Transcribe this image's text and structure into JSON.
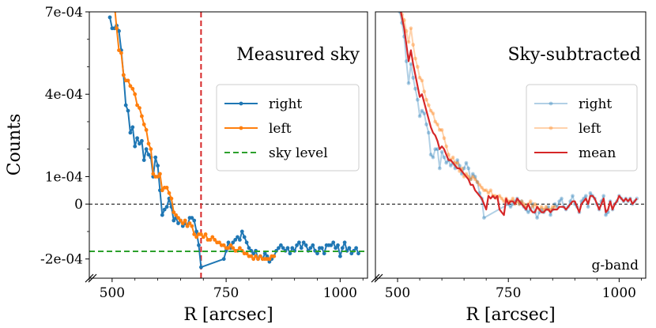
{
  "chart_data": [
    {
      "type": "line",
      "title": "Measured sky",
      "xlabel": "R [arcsec]",
      "ylabel": "Counts",
      "xlim": [
        450,
        1060
      ],
      "ylim": [
        -0.00027,
        0.0007
      ],
      "xticks": [
        500,
        750,
        1000
      ],
      "xtick_labels": [
        "500",
        "750",
        "1000"
      ],
      "yticks": [
        0.0007,
        0.0004,
        0.0001,
        0,
        -0.0002
      ],
      "ytick_labels": [
        "7e-04",
        "4e-04",
        "1e-04",
        "0",
        "-2e-04"
      ],
      "legend_position": "center-right",
      "vline": {
        "x": 695,
        "color": "#d62728"
      },
      "hline_zero": {
        "y": 0,
        "color": "#000000"
      },
      "series": [
        {
          "name": "right",
          "color": "#1f77b4",
          "marker": true,
          "x": [
            495,
            500,
            505,
            510,
            515,
            520,
            525,
            530,
            535,
            540,
            545,
            550,
            555,
            560,
            565,
            570,
            575,
            580,
            585,
            590,
            595,
            600,
            605,
            610,
            615,
            620,
            625,
            630,
            635,
            640,
            645,
            650,
            655,
            660,
            665,
            670,
            675,
            680,
            685,
            690,
            695,
            745,
            750,
            755,
            760,
            765,
            770,
            775,
            780,
            785,
            790,
            795,
            800,
            805,
            810,
            815,
            820,
            825,
            830,
            835,
            840,
            845,
            850,
            855,
            860,
            865,
            870,
            875,
            880,
            885,
            890,
            895,
            900,
            905,
            910,
            915,
            920,
            925,
            930,
            935,
            940,
            945,
            950,
            955,
            960,
            965,
            970,
            975,
            980,
            985,
            990,
            995,
            1000,
            1005,
            1010,
            1015,
            1020,
            1025,
            1030,
            1035,
            1040
          ],
          "y": [
            0.00068,
            0.00064,
            0.00064,
            0.00065,
            0.00063,
            0.00056,
            0.00047,
            0.00036,
            0.00034,
            0.00026,
            0.00028,
            0.00021,
            0.00024,
            0.00022,
            0.00023,
            0.00016,
            0.0002,
            0.00018,
            0.00017,
            0.0001,
            0.00017,
            0.00014,
            5e-05,
            -4e-05,
            -2e-05,
            -1e-05,
            2e-05,
            -1e-05,
            -6e-05,
            -5e-05,
            -7e-05,
            -6e-05,
            -8e-05,
            -7e-05,
            -8e-05,
            -5e-05,
            -5e-05,
            -6e-05,
            -0.0001,
            -0.00015,
            -0.00023,
            -0.0002,
            -0.00017,
            -0.00014,
            -0.00016,
            -0.00014,
            -0.00013,
            -0.00012,
            -0.00013,
            -0.0001,
            -0.00012,
            -0.00014,
            -0.00016,
            -0.00017,
            -0.00018,
            -0.00017,
            -0.0002,
            -0.00019,
            -0.0002,
            -0.00018,
            -0.00019,
            -0.00021,
            -0.0002,
            -0.00019,
            -0.00017,
            -0.00016,
            -0.00015,
            -0.00016,
            -0.00017,
            -0.00016,
            -0.00018,
            -0.00016,
            -0.00017,
            -0.00015,
            -0.00014,
            -0.00016,
            -0.00014,
            -0.00015,
            -0.00017,
            -0.00016,
            -0.00015,
            -0.00017,
            -0.00018,
            -0.00016,
            -0.00016,
            -0.00018,
            -0.00015,
            -0.00015,
            -0.00015,
            -0.00014,
            -0.00016,
            -0.00015,
            -0.00019,
            -0.00016,
            -0.00014,
            -0.00017,
            -0.00016,
            -0.00018,
            -0.00017,
            -0.00016,
            -0.00018
          ]
        },
        {
          "name": "left",
          "color": "#ff7f0e",
          "marker": true,
          "x": [
            505,
            510,
            515,
            520,
            525,
            530,
            535,
            540,
            545,
            550,
            555,
            560,
            565,
            570,
            575,
            580,
            585,
            590,
            595,
            600,
            605,
            610,
            615,
            620,
            625,
            630,
            635,
            640,
            645,
            650,
            655,
            660,
            665,
            670,
            675,
            680,
            685,
            690,
            695,
            700,
            705,
            710,
            715,
            720,
            725,
            730,
            735,
            740,
            745,
            750,
            755,
            760,
            765,
            770,
            775,
            780,
            785,
            790,
            795,
            800,
            805,
            810,
            815,
            820,
            825,
            830,
            835,
            840,
            845,
            850,
            855
          ],
          "y": [
            0.00073,
            0.00064,
            0.00056,
            0.00055,
            0.00047,
            0.00045,
            0.00045,
            0.00043,
            0.00042,
            0.0004,
            0.00036,
            0.00035,
            0.00032,
            0.00029,
            0.00027,
            0.00022,
            0.0002,
            0.00011,
            0.0001,
            0.0001,
            0.00011,
            5e-05,
            6e-05,
            6e-05,
            4e-05,
            2e-05,
            -3e-05,
            -4e-05,
            -5e-05,
            -6e-05,
            -7e-05,
            -6e-05,
            -8e-05,
            -7e-05,
            -8e-05,
            -0.00011,
            -0.00012,
            -0.00011,
            -0.00011,
            -0.00012,
            -0.00011,
            -0.00013,
            -0.00013,
            -0.00012,
            -0.00013,
            -0.00014,
            -0.00014,
            -0.00015,
            -0.00015,
            -0.00016,
            -0.00016,
            -0.00015,
            -0.00016,
            -0.00017,
            -0.00017,
            -0.00016,
            -0.00017,
            -0.00018,
            -0.00018,
            -0.00019,
            -0.00019,
            -0.0002,
            -0.00019,
            -0.0002,
            -0.00019,
            -0.0002,
            -0.0002,
            -0.0002,
            -0.0002,
            -0.00019,
            -0.00019
          ]
        },
        {
          "name": "sky level",
          "color": "#2ca02c",
          "dashed": true,
          "y": -0.000172
        }
      ]
    },
    {
      "type": "line",
      "title": "Sky-subtracted",
      "annotation": "g-band",
      "xlabel": "R [arcsec]",
      "ylabel": "",
      "xlim": [
        450,
        1060
      ],
      "ylim": [
        -0.00027,
        0.0007
      ],
      "xticks": [
        500,
        750,
        1000
      ],
      "xtick_labels": [
        "500",
        "750",
        "1000"
      ],
      "legend_position": "center-right",
      "hline_zero": {
        "y": 0,
        "color": "#000000"
      },
      "series": [
        {
          "name": "right",
          "color": "#1f77b4",
          "alpha": 0.35,
          "marker": true,
          "x": [
            505,
            510,
            515,
            520,
            525,
            530,
            535,
            540,
            545,
            550,
            555,
            560,
            565,
            570,
            575,
            580,
            585,
            590,
            595,
            600,
            605,
            610,
            615,
            620,
            625,
            630,
            635,
            640,
            645,
            650,
            655,
            660,
            665,
            670,
            675,
            680,
            685,
            690,
            695,
            750,
            755,
            760,
            765,
            770,
            775,
            780,
            785,
            790,
            795,
            800,
            805,
            810,
            815,
            820,
            825,
            830,
            835,
            840,
            845,
            850,
            855,
            860,
            865,
            870,
            875,
            880,
            885,
            890,
            895,
            900,
            905,
            910,
            915,
            920,
            925,
            930,
            935,
            940,
            945,
            950,
            955,
            960,
            965,
            970,
            975,
            980,
            985,
            990,
            995,
            1000,
            1005,
            1010,
            1015,
            1020,
            1025,
            1030,
            1035,
            1040
          ],
          "y": [
            0.0007,
            0.00066,
            0.00061,
            0.00052,
            0.00044,
            0.00051,
            0.00046,
            0.00042,
            0.00038,
            0.00032,
            0.00034,
            0.00033,
            0.00029,
            0.00026,
            0.00018,
            0.00017,
            0.0002,
            0.0002,
            0.00013,
            0.00019,
            0.00017,
            0.00015,
            0.00016,
            0.00014,
            0.00015,
            0.00013,
            0.00016,
            0.00014,
            0.00011,
            0.00013,
            0.00015,
            0.00013,
            9e-05,
            0.00011,
            0.0001,
            8e-05,
            4e-05,
            2e-05,
            -5e-05,
            0.0,
            -1e-05,
            0.0,
            1e-05,
            2e-05,
            0.0,
            1e-05,
            -1e-05,
            -2e-05,
            -3e-05,
            -2e-05,
            0.0,
            -3e-05,
            -5e-05,
            -3e-05,
            -2e-05,
            -3e-05,
            -2e-05,
            -1e-05,
            -4e-05,
            -2e-05,
            0.0,
            -1e-05,
            1e-05,
            2e-05,
            -1e-05,
            -2e-05,
            -1e-05,
            1e-05,
            3e-05,
            0.0,
            -1e-05,
            -3e-05,
            1e-05,
            2e-05,
            3e-05,
            -1e-05,
            4e-05,
            3e-05,
            2e-05,
            0.0,
            -2e-05,
            1e-05,
            3e-05,
            -4e-05,
            -3e-05,
            1e-05,
            -2e-05,
            0.0,
            1e-05,
            3e-05,
            2e-05,
            1e-05,
            2e-05,
            1e-05,
            2e-05,
            0.0,
            1e-05,
            2e-05
          ]
        },
        {
          "name": "left",
          "color": "#ff7f0e",
          "alpha": 0.35,
          "marker": true,
          "x": [
            505,
            510,
            515,
            520,
            525,
            530,
            535,
            540,
            545,
            550,
            555,
            560,
            565,
            570,
            575,
            580,
            585,
            590,
            595,
            600,
            605,
            610,
            615,
            620,
            625,
            630,
            635,
            640,
            645,
            650,
            655,
            660,
            665,
            670,
            675,
            680,
            685,
            690,
            695,
            700,
            705,
            710,
            715,
            720,
            725,
            730,
            735,
            740,
            745,
            750,
            755,
            760,
            765,
            770,
            775,
            780,
            785,
            790,
            795,
            800,
            805,
            810,
            815,
            820,
            825,
            830,
            835,
            840,
            845,
            850,
            855
          ],
          "y": [
            0.00074,
            0.00069,
            0.00067,
            0.00063,
            0.00059,
            0.00064,
            0.00058,
            0.00053,
            0.0005,
            0.00046,
            0.00045,
            0.00041,
            0.00038,
            0.00036,
            0.00034,
            0.00033,
            0.0003,
            0.00029,
            0.00027,
            0.00027,
            0.00024,
            0.00021,
            0.00018,
            0.00016,
            0.00017,
            0.00015,
            0.00015,
            0.00012,
            0.00013,
            0.0001,
            0.00011,
            0.0001,
            9e-05,
            0.0001,
            9e-05,
            8e-05,
            7e-05,
            6e-05,
            5e-05,
            5e-05,
            4e-05,
            5e-05,
            3e-05,
            3e-05,
            2e-05,
            3e-05,
            2e-05,
            1e-05,
            2e-05,
            1e-05,
            1e-05,
            2e-05,
            0.0,
            1e-05,
            0.0,
            1e-05,
            0.0,
            -1e-05,
            0.0,
            1e-05,
            -1e-05,
            0.0,
            -1e-05,
            -2e-05,
            -1e-05,
            -2e-05,
            -1e-05,
            -2e-05,
            -2e-05,
            -1e-05,
            -1e-05
          ]
        },
        {
          "name": "mean",
          "color": "#d62728",
          "marker": false,
          "x": [
            505,
            510,
            515,
            520,
            525,
            530,
            535,
            540,
            545,
            550,
            555,
            560,
            565,
            570,
            575,
            580,
            585,
            590,
            595,
            600,
            605,
            610,
            615,
            620,
            625,
            630,
            635,
            640,
            645,
            650,
            655,
            660,
            665,
            670,
            675,
            680,
            685,
            690,
            695,
            700,
            705,
            710,
            715,
            720,
            725,
            730,
            735,
            740,
            745,
            750,
            755,
            760,
            765,
            770,
            775,
            780,
            785,
            790,
            795,
            800,
            805,
            810,
            815,
            820,
            825,
            830,
            835,
            840,
            845,
            850,
            855,
            860,
            865,
            870,
            875,
            880,
            885,
            890,
            895,
            900,
            905,
            910,
            915,
            920,
            925,
            930,
            935,
            940,
            945,
            950,
            955,
            960,
            965,
            970,
            975,
            980,
            985,
            990,
            995,
            1000,
            1005,
            1010,
            1015,
            1020,
            1025,
            1030,
            1035,
            1040
          ],
          "y": [
            0.00072,
            0.00068,
            0.00064,
            0.00058,
            0.00052,
            0.00056,
            0.00051,
            0.00047,
            0.00043,
            0.00039,
            0.0004,
            0.00037,
            0.00034,
            0.00031,
            0.00028,
            0.00026,
            0.00025,
            0.00023,
            0.0002,
            0.00021,
            0.0002,
            0.00018,
            0.00016,
            0.00016,
            0.00015,
            0.00014,
            0.00013,
            0.00013,
            0.00012,
            0.00011,
            0.0001,
            9e-05,
            7e-05,
            7e-05,
            5e-05,
            4e-05,
            3e-05,
            2e-05,
            0.0,
            -2e-05,
            3e-05,
            2e-05,
            3e-05,
            2e-05,
            3e-05,
            -2e-05,
            -3e-05,
            -4e-05,
            2e-05,
            0.0,
            1e-05,
            1e-05,
            0.0,
            2e-05,
            1e-05,
            0.0,
            -1e-05,
            -2e-05,
            0.0,
            -2e-05,
            -3e-05,
            -3e-05,
            -1e-05,
            -2e-05,
            -3e-05,
            -3e-05,
            -2e-05,
            -2e-05,
            -3e-05,
            -2e-05,
            -2e-05,
            -2e-05,
            -1e-05,
            -1e-05,
            -1e-05,
            -2e-05,
            -1e-05,
            0.0,
            1e-05,
            1e-05,
            -1e-05,
            -3e-05,
            0.0,
            1e-05,
            2e-05,
            0.0,
            3e-05,
            3e-05,
            2e-05,
            0.0,
            -2e-05,
            0.0,
            2e-05,
            -3e-05,
            -2e-05,
            1e-05,
            -2e-05,
            0.0,
            1e-05,
            3e-05,
            2e-05,
            1e-05,
            2e-05,
            1e-05,
            2e-05,
            0.0,
            1e-05,
            2e-05
          ]
        }
      ]
    }
  ]
}
